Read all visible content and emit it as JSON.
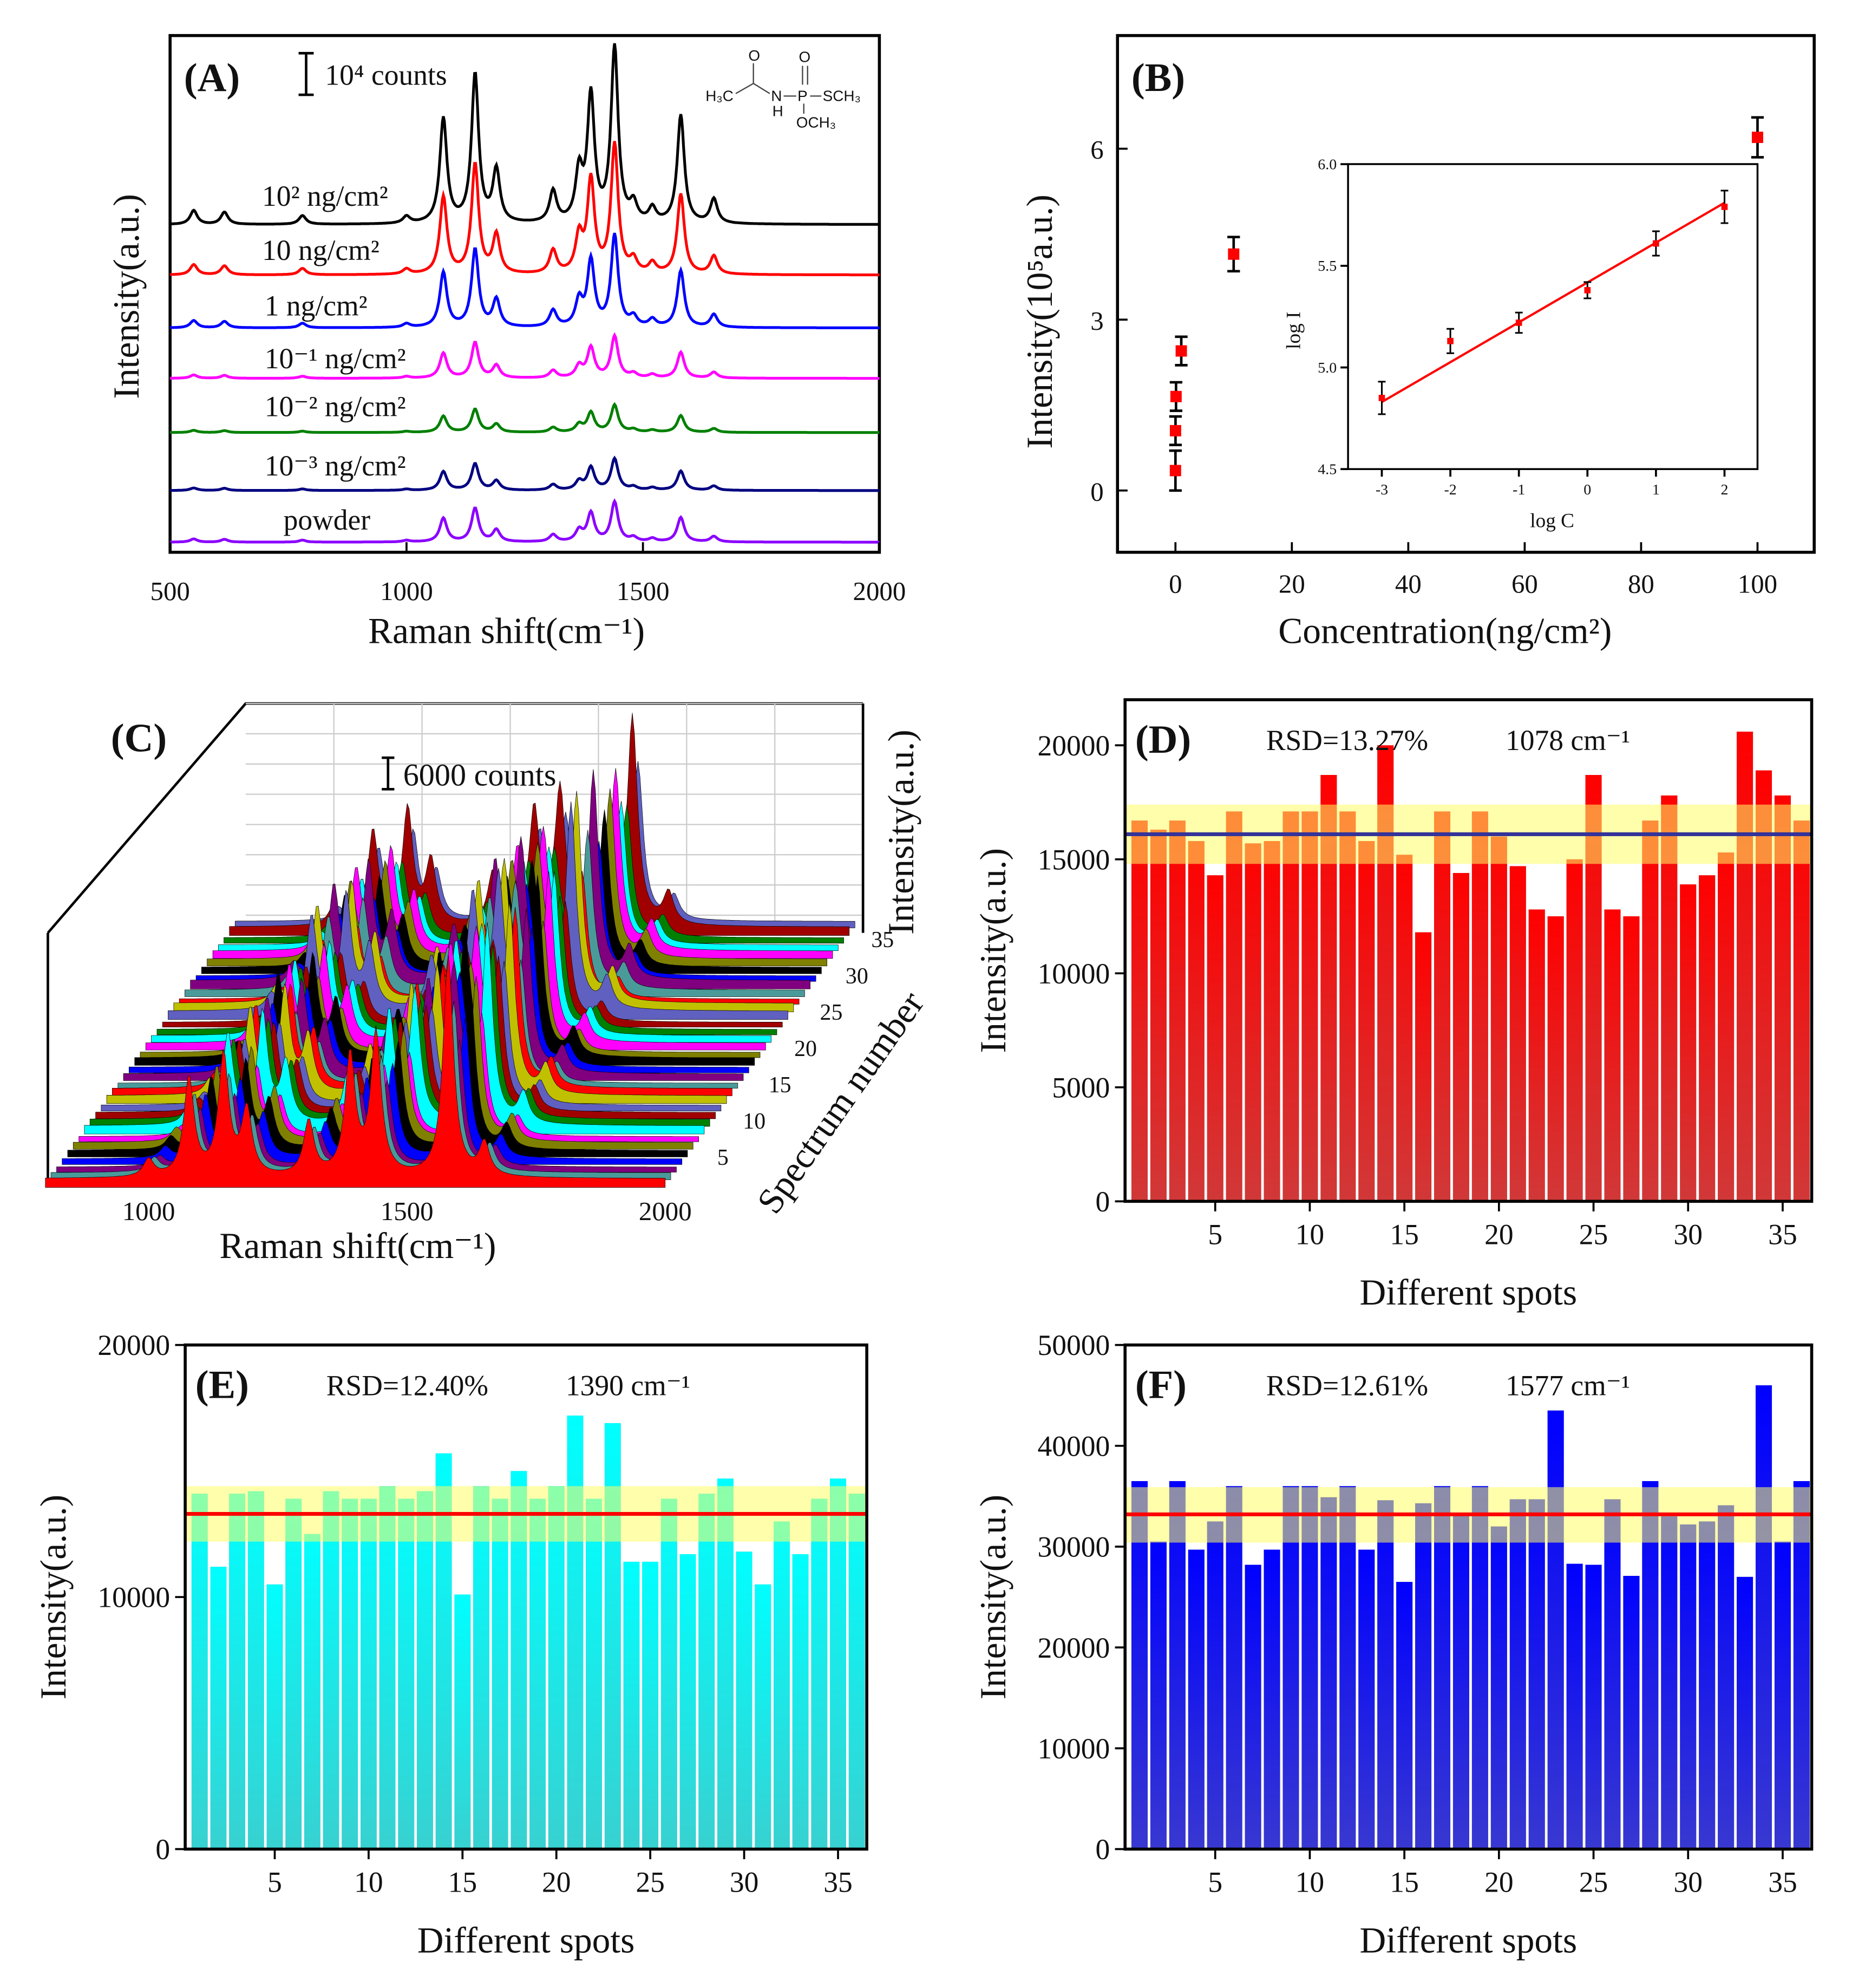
{
  "chart_data": [
    {
      "panel": "(A)",
      "type": "line",
      "xlabel": "Raman shift(cm⁻¹)",
      "ylabel": "Intensity(a.u.)",
      "xlim": [
        500,
        2000
      ],
      "xticks": [
        "500",
        "1000",
        "1500",
        "2000"
      ],
      "scale_bar": "10⁴ counts",
      "molecule": {
        "left": "H₃C",
        "nh": "N",
        "h": "H",
        "p": "P",
        "sch3": "SCH₃",
        "och3": "OCH₃",
        "o": "O"
      },
      "peaks_cm": [
        [
          550,
          0.08
        ],
        [
          615,
          0.07
        ],
        [
          780,
          0.05
        ],
        [
          1000,
          0.04
        ],
        [
          1078,
          0.6
        ],
        [
          1145,
          0.85
        ],
        [
          1190,
          0.3
        ],
        [
          1310,
          0.18
        ],
        [
          1365,
          0.28
        ],
        [
          1390,
          0.72
        ],
        [
          1440,
          1.0
        ],
        [
          1480,
          0.1
        ],
        [
          1520,
          0.08
        ],
        [
          1580,
          0.62
        ],
        [
          1650,
          0.14
        ]
      ],
      "series": [
        {
          "name": "10² ng/cm²",
          "color": "#000000",
          "amplitude_counts": 42000
        },
        {
          "name": "10 ng/cm²",
          "color": "#ff0000",
          "amplitude_counts": 31000
        },
        {
          "name": "1 ng/cm²",
          "color": "#0000ff",
          "amplitude_counts": 22000
        },
        {
          "name": "10⁻¹ ng/cm²",
          "color": "#ff00ff",
          "amplitude_counts": 10000
        },
        {
          "name": "10⁻² ng/cm²",
          "color": "#008000",
          "amplitude_counts": 6500
        },
        {
          "name": "10⁻³ ng/cm²",
          "color": "#000080",
          "amplitude_counts": 7500
        },
        {
          "name": "powder",
          "color": "#8b00ff",
          "amplitude_counts": 9500
        }
      ]
    },
    {
      "panel": "(B)",
      "type": "scatter",
      "xlabel": "Concentration(ng/cm²)",
      "ylabel": "Intensity(10⁵a.u.)",
      "xlim": [
        -10,
        110
      ],
      "ylim": [
        -1,
        8.5
      ],
      "xticks": [
        "0",
        "20",
        "40",
        "60",
        "80",
        "100"
      ],
      "yticks": [
        "0",
        "3",
        "6"
      ],
      "x": [
        0.001,
        0.01,
        0.1,
        1,
        10,
        100
      ],
      "y": [
        0.35,
        1.05,
        1.65,
        2.45,
        4.15,
        6.2
      ],
      "err": [
        0.35,
        0.25,
        0.25,
        0.25,
        0.3,
        0.35
      ],
      "inset": {
        "type": "scatter+fit",
        "xlabel": "log C",
        "ylabel": "log I",
        "xlim": [
          -3.5,
          2.5
        ],
        "ylim": [
          4.5,
          6.0
        ],
        "xticks": [
          "-3",
          "-2",
          "-1",
          "0",
          "1",
          "2"
        ],
        "yticks": [
          "4.5",
          "5.0",
          "5.5",
          "6.0"
        ],
        "x": [
          -3,
          -2,
          -1,
          0,
          1,
          2
        ],
        "y": [
          4.85,
          5.13,
          5.22,
          5.38,
          5.61,
          5.79
        ],
        "err": [
          0.08,
          0.06,
          0.05,
          0.04,
          0.06,
          0.08
        ],
        "fit": [
          [
            -3,
            4.83
          ],
          [
            2,
            5.81
          ]
        ]
      }
    },
    {
      "panel": "(C)",
      "type": "area",
      "xlabel": "Raman shift(cm⁻¹)",
      "ylabel": "Intensity(a.u.)",
      "zlabel": "Spectrum number",
      "xticks": [
        "1000",
        "1500",
        "2000"
      ],
      "zticks": [
        "5",
        "10",
        "15",
        "20",
        "25",
        "30",
        "35"
      ],
      "scale_bar": "6000 counts",
      "n_spectra": 35,
      "colors": [
        "#ff0000",
        "#4a9a9a",
        "#800080",
        "#0000ff",
        "#000000",
        "#808000",
        "#ff00ff",
        "#00ffff",
        "#008000",
        "#a00000",
        "#6060c0",
        "#c0c000"
      ]
    },
    {
      "panel": "(D)",
      "type": "bar",
      "annotation": "RSD=13.27%",
      "peak": "1078 cm⁻¹",
      "xlabel": "Different spots",
      "ylabel": "Intensity(a.u.)",
      "ylim": [
        0,
        22000
      ],
      "yticks": [
        0,
        5000,
        10000,
        15000,
        20000
      ],
      "xticks": [
        5,
        10,
        15,
        20,
        25,
        30,
        35
      ],
      "mean": 16100,
      "band": [
        14800,
        17400
      ],
      "bar_color": "#ff0000",
      "band_color": "#ffff66",
      "line_color": "#333399",
      "values": [
        16700,
        16300,
        16700,
        15800,
        14300,
        17100,
        15700,
        15800,
        17100,
        17100,
        18700,
        17100,
        15800,
        20000,
        15200,
        11800,
        17100,
        14400,
        17100,
        16000,
        14700,
        12800,
        12500,
        15000,
        18700,
        12800,
        12500,
        16700,
        17800,
        13900,
        14300,
        15300,
        20600,
        18900,
        17800,
        16700
      ]
    },
    {
      "panel": "(E)",
      "type": "bar",
      "annotation": "RSD=12.40%",
      "peak": "1390 cm⁻¹",
      "xlabel": "Different spots",
      "ylabel": "Intensity(a.u.)",
      "ylim": [
        0,
        20000
      ],
      "yticks": [
        0,
        10000,
        20000
      ],
      "xticks": [
        5,
        10,
        15,
        20,
        25,
        30,
        35
      ],
      "mean": 13300,
      "band": [
        12200,
        14400
      ],
      "bar_color": "#00ffff",
      "band_color": "#ffff66",
      "line_color": "#ff0000",
      "values": [
        14100,
        11200,
        14100,
        14200,
        10500,
        13900,
        12500,
        14200,
        13900,
        13900,
        14400,
        13900,
        14200,
        15700,
        10100,
        14400,
        13900,
        15000,
        13900,
        14400,
        17200,
        13900,
        16900,
        11400,
        11400,
        13900,
        11700,
        14100,
        14700,
        11800,
        10500,
        13000,
        11700,
        13900,
        14700,
        14100
      ]
    },
    {
      "panel": "(F)",
      "type": "bar",
      "annotation": "RSD=12.61%",
      "peak": "1577 cm⁻¹",
      "xlabel": "Different spots",
      "ylabel": "Intensity(a.u.)",
      "ylim": [
        0,
        50000
      ],
      "yticks": [
        0,
        10000,
        20000,
        30000,
        40000,
        50000
      ],
      "xticks": [
        5,
        10,
        15,
        20,
        25,
        30,
        35
      ],
      "mean": 33200,
      "band": [
        30400,
        35900
      ],
      "bar_color": "#0000ff",
      "band_color": "#ffff66",
      "line_color": "#ff0000",
      "values": [
        36500,
        30500,
        36500,
        29700,
        32500,
        36000,
        28200,
        29700,
        36000,
        36000,
        34900,
        36000,
        29700,
        34600,
        26500,
        34300,
        36000,
        33200,
        36000,
        32000,
        34700,
        34700,
        43500,
        28300,
        28200,
        34700,
        27100,
        36500,
        33000,
        32200,
        32500,
        34100,
        27000,
        46000,
        30500,
        36500
      ]
    }
  ]
}
